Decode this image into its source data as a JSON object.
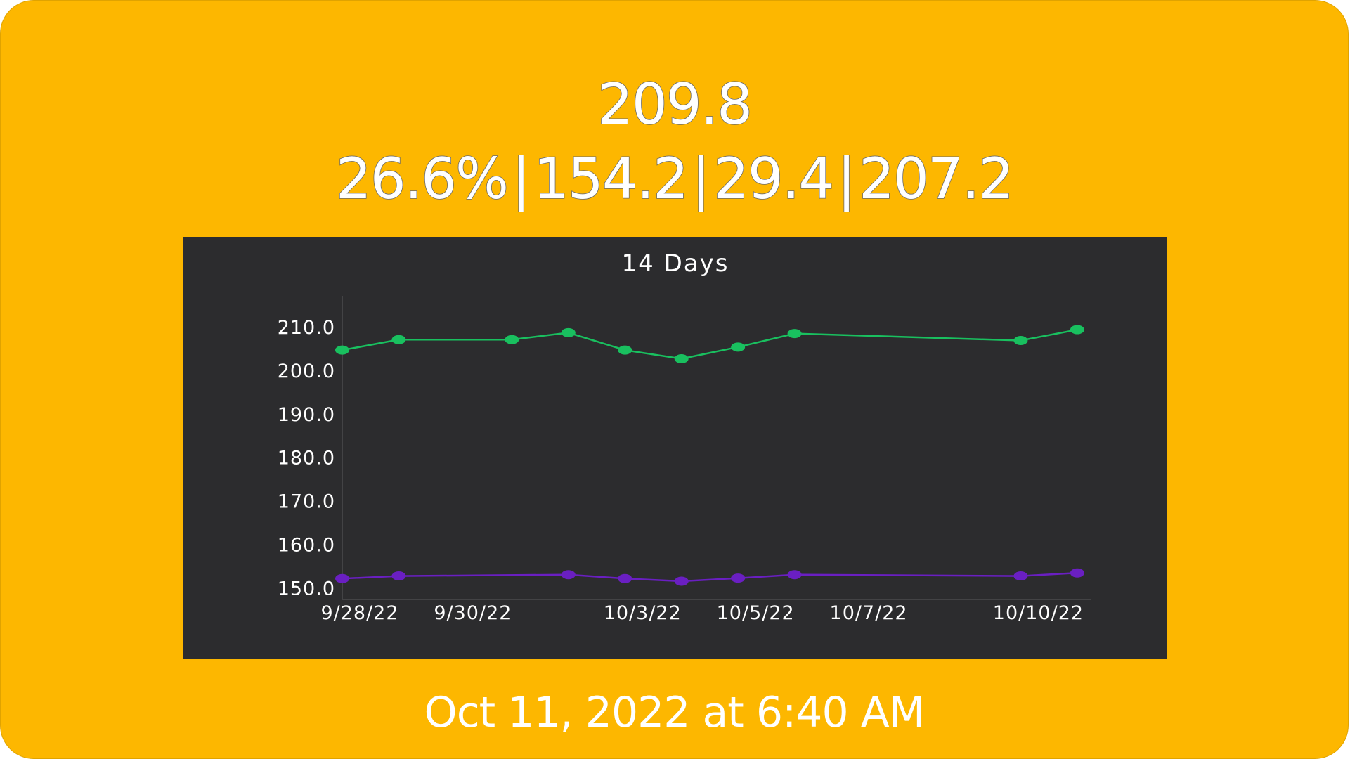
{
  "header": {
    "main_value": "209.8",
    "stats": [
      "26.6%",
      "154.2",
      "29.4",
      "207.2"
    ],
    "separator": "|"
  },
  "footer": {
    "timestamp": "Oct 11, 2022 at 6:40 AM"
  },
  "colors": {
    "card_background": "#FDB700",
    "chart_background": "#2C2C2E",
    "series_upper": "#19C05F",
    "series_lower": "#6A1FC2",
    "text": "#FFFFFF"
  },
  "chart_data": {
    "type": "line",
    "title": "14 Days",
    "xlabel": "",
    "ylabel": "",
    "x_ticks": [
      "9/28/22",
      "9/30/22",
      "10/3/22",
      "10/5/22",
      "10/7/22",
      "10/10/22"
    ],
    "y_ticks": [
      "150.0",
      "160.0",
      "170.0",
      "180.0",
      "190.0",
      "200.0",
      "210.0"
    ],
    "ylim": [
      147.5,
      215
    ],
    "xlim": [
      "2022-09-28",
      "2022-10-11"
    ],
    "grid": false,
    "legend": "none",
    "series": [
      {
        "color": "#19C05F",
        "points": [
          {
            "x": "2022-09-28",
            "y": 204.8
          },
          {
            "x": "2022-09-29",
            "y": 207.2
          },
          {
            "x": "2022-10-01",
            "y": 207.2
          },
          {
            "x": "2022-10-02",
            "y": 208.8
          },
          {
            "x": "2022-10-03",
            "y": 204.8
          },
          {
            "x": "2022-10-04",
            "y": 202.8
          },
          {
            "x": "2022-10-05",
            "y": 205.5
          },
          {
            "x": "2022-10-06",
            "y": 208.6
          },
          {
            "x": "2022-10-10",
            "y": 207.0
          },
          {
            "x": "2022-10-11",
            "y": 209.5
          }
        ]
      },
      {
        "color": "#6A1FC2",
        "points": [
          {
            "x": "2022-09-28",
            "y": 152.3
          },
          {
            "x": "2022-09-29",
            "y": 152.9
          },
          {
            "x": "2022-10-02",
            "y": 153.2
          },
          {
            "x": "2022-10-03",
            "y": 152.3
          },
          {
            "x": "2022-10-04",
            "y": 151.7
          },
          {
            "x": "2022-10-05",
            "y": 152.4
          },
          {
            "x": "2022-10-06",
            "y": 153.2
          },
          {
            "x": "2022-10-10",
            "y": 152.9
          },
          {
            "x": "2022-10-11",
            "y": 153.6
          }
        ]
      }
    ]
  }
}
